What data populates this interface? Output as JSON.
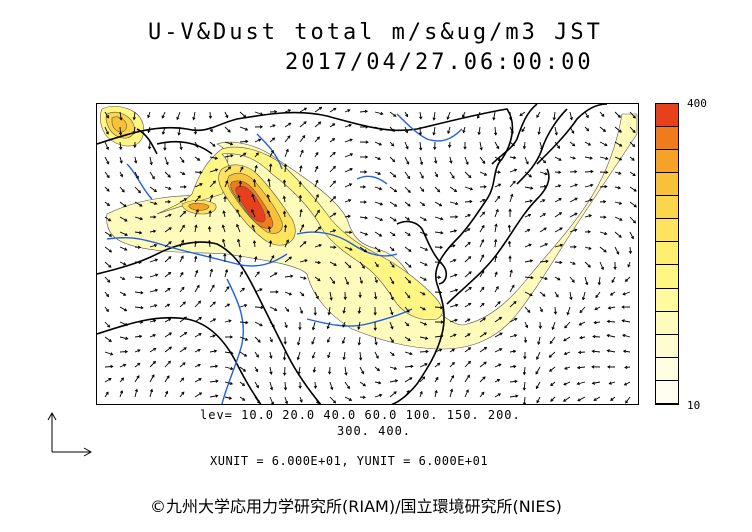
{
  "header": {
    "title_line1": "U-V&Dust total m/s&ug/m3 JST",
    "title_line2": "2017/04/27.06:00:00"
  },
  "map": {
    "description_icons": [
      "coastline",
      "rivers",
      "wind-vectors",
      "dust-concentration-shading"
    ]
  },
  "colorbar": {
    "max_label": "400",
    "min_label": "10",
    "colors": [
      "#e8401a",
      "#f07b1c",
      "#f5a327",
      "#f8c13a",
      "#fbd54c",
      "#fde35e",
      "#fef06e",
      "#fff684",
      "#fff9a0",
      "#fffbba",
      "#fffcd0",
      "#fffde2",
      "#fffef0"
    ]
  },
  "levels": {
    "line1": "lev= 10.0 20.0 40.0 60.0 100. 150. 200.",
    "line2": "300. 400."
  },
  "units": {
    "text": "XUNIT = 6.000E+01, YUNIT = 6.000E+01"
  },
  "footer": {
    "copyright": "©九州大学応用力学研究所(RIAM)/国立環境研究所(NIES)"
  }
}
